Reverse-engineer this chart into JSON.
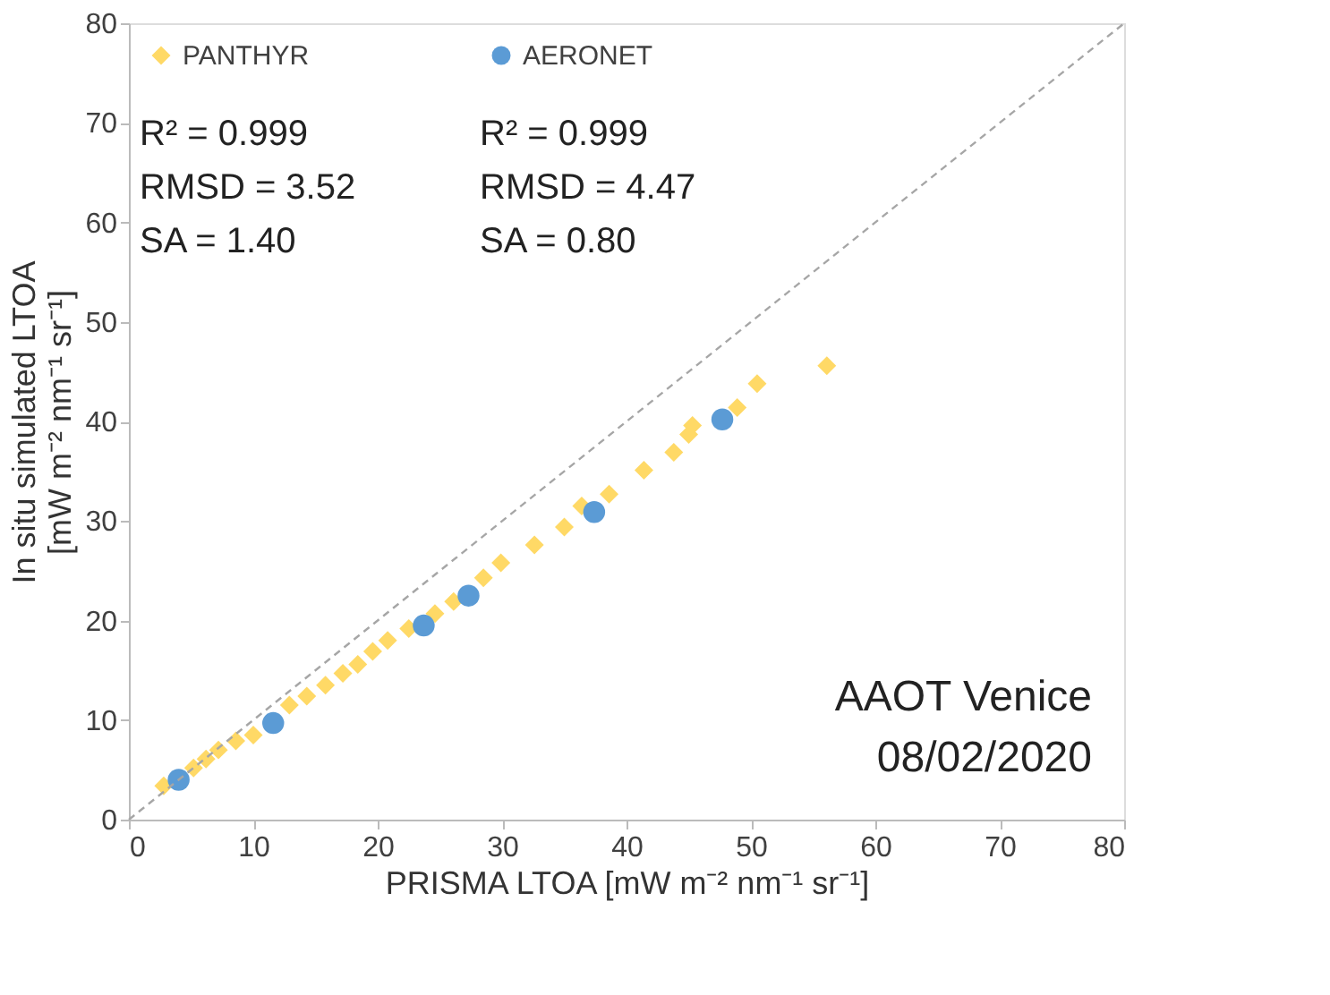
{
  "chart_data": {
    "type": "scatter",
    "xlabel": "PRISMA LTOA [mW m⁻² nm⁻¹ sr⁻¹]",
    "ylabel": "In situ simulated LTOA\n[mW m⁻² nm⁻¹ sr⁻¹]",
    "xlim": [
      0,
      80
    ],
    "ylim": [
      0,
      80
    ],
    "xticks": [
      0,
      10,
      20,
      30,
      40,
      50,
      60,
      70,
      80
    ],
    "yticks": [
      0,
      10,
      20,
      30,
      40,
      50,
      60,
      70,
      80
    ],
    "grid": false,
    "legend": "top left",
    "series": [
      {
        "name": "PANTHYR",
        "color": "#ffd966",
        "marker": "diamond",
        "x": [
          2.8,
          5.2,
          6.2,
          7.2,
          8.6,
          10,
          12.9,
          14.3,
          15.8,
          17.2,
          18.4,
          19.6,
          20.8,
          22.5,
          24.6,
          26.1,
          28.5,
          29.9,
          32.6,
          35,
          36.4,
          38.6,
          41.4,
          43.8,
          45,
          45.3,
          48.9,
          50.5,
          56.1
        ],
        "values": [
          3.4,
          5.2,
          6.1,
          7,
          7.9,
          8.5,
          11.5,
          12.4,
          13.5,
          14.7,
          15.6,
          16.9,
          18,
          19.2,
          20.7,
          21.9,
          24.3,
          25.8,
          27.6,
          29.4,
          31.5,
          32.7,
          35.1,
          36.9,
          38.7,
          39.6,
          41.4,
          43.8,
          45.6
        ]
      },
      {
        "name": "AERONET",
        "color": "#5b9bd5",
        "marker": "circle",
        "x": [
          4,
          11.6,
          23.7,
          27.3,
          37.4,
          47.7
        ],
        "values": [
          4,
          9.7,
          19.5,
          22.5,
          30.9,
          40.2
        ]
      },
      {
        "type": "line",
        "color": "#a6a6a6",
        "line_style": "dashed",
        "marker": "none",
        "x": [
          0,
          80
        ],
        "values": [
          0,
          80
        ]
      }
    ],
    "annotations": [
      "R² = 0.999\nRMSD = 3.52\nSA = 1.40",
      "R² = 0.999\nRMSD = 4.47\nSA = 0.80",
      "AAOT Venice\n08/02/2020"
    ]
  }
}
